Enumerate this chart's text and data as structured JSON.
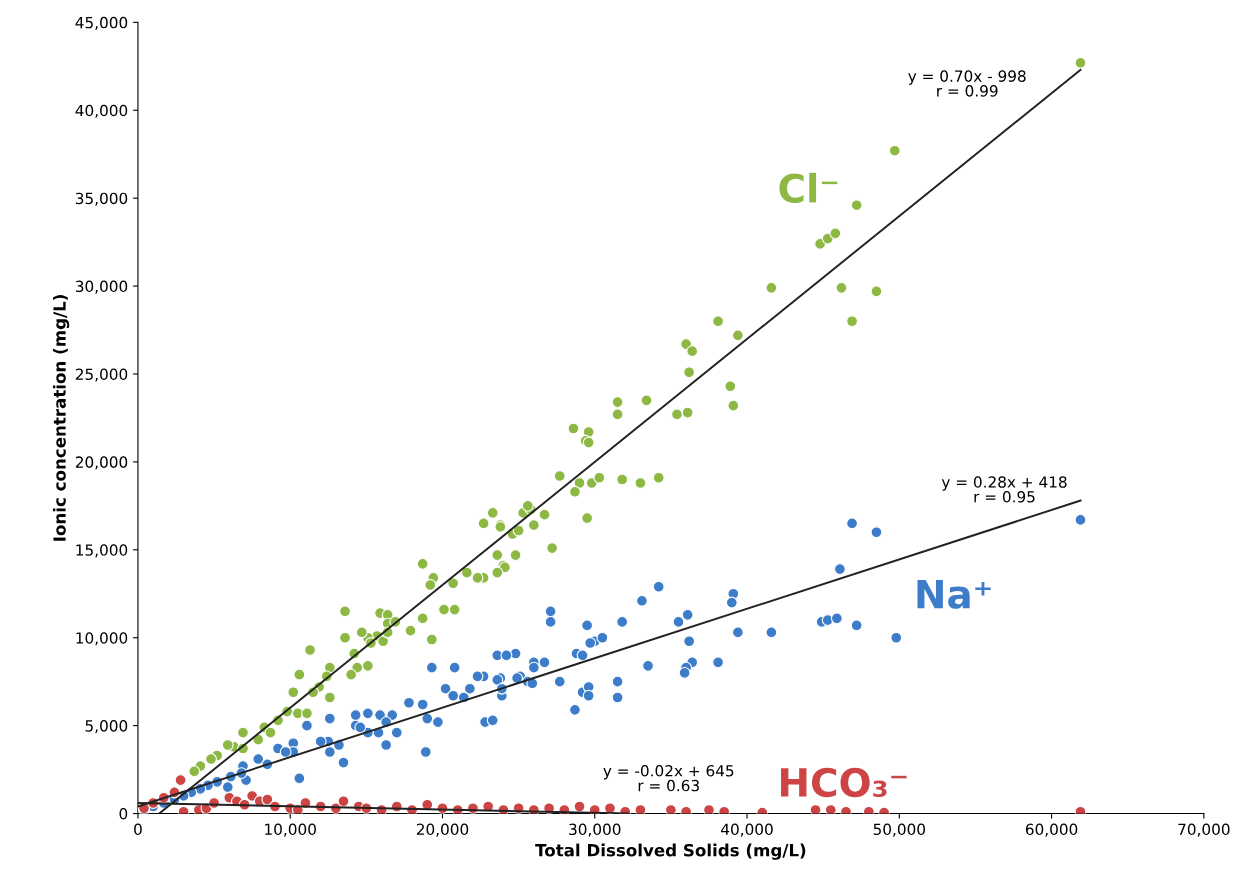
{
  "chart_data": {
    "type": "scatter",
    "xlabel": "Total Dissolved Solids (mg/L)",
    "ylabel": "Ionic concentration (mg/L)",
    "xlim": [
      0,
      70000
    ],
    "ylim": [
      0,
      45000
    ],
    "xticks": [
      0,
      {
        "value": 10000,
        "label": "10,000"
      },
      {
        "value": 20000,
        "label": "20,000"
      },
      {
        "value": 30000,
        "label": "30,000"
      },
      {
        "value": 40000,
        "label": "40,000"
      },
      {
        "value": 50000,
        "label": "50,000"
      },
      {
        "value": 60000,
        "label": "60,000"
      },
      {
        "value": 70000,
        "label": "70,000"
      }
    ],
    "yticks": [
      0,
      {
        "value": 5000,
        "label": "5,000"
      },
      {
        "value": 10000,
        "label": "10,000"
      },
      {
        "value": 15000,
        "label": "15,000"
      },
      {
        "value": 20000,
        "label": "20,000"
      },
      {
        "value": 25000,
        "label": "25,000"
      },
      {
        "value": 30000,
        "label": "30,000"
      },
      {
        "value": 35000,
        "label": "35,000"
      },
      {
        "value": 40000,
        "label": "40,000"
      },
      {
        "value": 45000,
        "label": "45,000"
      }
    ],
    "grid": false,
    "legend": false,
    "marker": "circle",
    "series": [
      {
        "name": "Cl⁻",
        "color": "#8db843",
        "x": [
          61900,
          49700,
          47200,
          44800,
          45300,
          45800,
          41600,
          46200,
          48500,
          46900,
          38100,
          39400,
          36000,
          36400,
          36200,
          38900,
          39100,
          31500,
          31500,
          33400,
          35400,
          36100,
          28600,
          29600,
          29400,
          29600,
          27700,
          29000,
          28700,
          29800,
          30300,
          31800,
          33000,
          34200,
          29500,
          25300,
          25800,
          26000,
          26700,
          27200,
          23800,
          24600,
          24800,
          24000,
          25600,
          23300,
          22700,
          23800,
          25000,
          23600,
          24100,
          23600,
          22700,
          21600,
          22300,
          18700,
          19400,
          19200,
          20700,
          20100,
          20800,
          18700,
          19300,
          17900,
          15900,
          16400,
          16400,
          16900,
          15700,
          16100,
          16400,
          15100,
          15300,
          13600,
          13600,
          14700,
          14200,
          14400,
          15100,
          14000,
          11300,
          10600,
          10200,
          12600,
          12400,
          11900,
          11500,
          12600,
          9800,
          10500,
          11100,
          9200,
          8300,
          8700,
          6900,
          7900,
          6300,
          5900,
          6900,
          5200,
          4800,
          4100,
          3700
        ],
        "values": [
          42700,
          37700,
          34600,
          32400,
          32700,
          33000,
          29900,
          29900,
          29700,
          28000,
          28000,
          27200,
          26700,
          26300,
          25100,
          24300,
          23200,
          23400,
          22700,
          23500,
          22700,
          22800,
          21900,
          21700,
          21200,
          21100,
          19200,
          18800,
          18300,
          18800,
          19100,
          19000,
          18800,
          19100,
          16800,
          17100,
          17300,
          16400,
          17000,
          15100,
          16400,
          15900,
          14700,
          14100,
          17500,
          17100,
          16500,
          16300,
          16100,
          14700,
          14000,
          13700,
          13400,
          13700,
          13400,
          14200,
          13400,
          13000,
          13100,
          11600,
          11600,
          11100,
          9900,
          10400,
          11400,
          11300,
          10800,
          10900,
          10100,
          9800,
          10300,
          10000,
          9700,
          11500,
          10000,
          10300,
          9100,
          8300,
          8400,
          7900,
          9300,
          7900,
          6900,
          8300,
          7800,
          7200,
          6900,
          6600,
          5800,
          5700,
          5700,
          5300,
          4900,
          4600,
          4600,
          4200,
          3800,
          3900,
          3700,
          3300,
          3100,
          2700,
          2400
        ]
      },
      {
        "name": "Na⁺",
        "color": "#3d7cc9",
        "x": [
          61900,
          46900,
          48500,
          46100,
          44900,
          45300,
          45900,
          47200,
          49800,
          39100,
          39000,
          39400,
          41600,
          38100,
          36100,
          35500,
          36200,
          36400,
          36000,
          35900,
          34200,
          33100,
          33500,
          31800,
          31500,
          31500,
          29500,
          30000,
          30500,
          29700,
          28800,
          29200,
          27700,
          28700,
          29200,
          29600,
          29600,
          27100,
          27100,
          26000,
          26700,
          26000,
          24800,
          25100,
          25600,
          25900,
          23800,
          23900,
          23600,
          24200,
          22700,
          22300,
          23600,
          23900,
          24900,
          22800,
          23300,
          20800,
          20200,
          20700,
          21400,
          21800,
          19300,
          19000,
          19700,
          18900,
          17800,
          18700,
          15900,
          16700,
          16300,
          17000,
          15800,
          16300,
          15100,
          14300,
          14300,
          15100,
          14600,
          13500,
          12600,
          12500,
          12600,
          13200,
          11100,
          12000,
          10200,
          10200,
          10600,
          9200,
          9700,
          7900,
          8500,
          6900,
          7100,
          6800,
          6100,
          5900,
          5200,
          4600,
          4100,
          3500,
          3000,
          2400,
          1700,
          1000,
          400
        ],
        "values": [
          16700,
          16500,
          16000,
          13900,
          10900,
          11000,
          11100,
          10700,
          10000,
          12500,
          12000,
          10300,
          10300,
          8600,
          11300,
          10900,
          9800,
          8600,
          8300,
          8000,
          12900,
          12100,
          8400,
          10900,
          7500,
          6600,
          10700,
          9800,
          10000,
          9700,
          9100,
          9000,
          7500,
          5900,
          6900,
          7200,
          6700,
          11500,
          10900,
          8600,
          8600,
          8300,
          9100,
          7800,
          7500,
          7400,
          7700,
          6700,
          9000,
          9000,
          7800,
          7800,
          7600,
          7100,
          7700,
          5200,
          5300,
          8300,
          7100,
          6700,
          6600,
          7100,
          8300,
          5400,
          5200,
          3500,
          6300,
          6200,
          5600,
          5600,
          5200,
          4600,
          4600,
          3900,
          5700,
          5600,
          5000,
          4600,
          4900,
          2900,
          5400,
          4100,
          3500,
          3900,
          5000,
          4100,
          4000,
          3500,
          2000,
          3700,
          3500,
          3100,
          2800,
          2700,
          1900,
          2300,
          2100,
          1500,
          1800,
          1600,
          1400,
          1200,
          1000,
          800,
          600,
          400,
          200
        ]
      },
      {
        "name": "HCO₃⁻",
        "color": "#cc4444",
        "x": [
          400,
          1000,
          1700,
          2400,
          2800,
          3000,
          4000,
          4500,
          5000,
          6000,
          6500,
          7000,
          7500,
          8000,
          8500,
          9000,
          10000,
          10500,
          11000,
          12000,
          13000,
          13500,
          14500,
          15000,
          16000,
          17000,
          18000,
          19000,
          20000,
          21000,
          22000,
          23000,
          24000,
          25000,
          26000,
          27000,
          28000,
          29000,
          30000,
          31000,
          32000,
          33000,
          35000,
          36000,
          37500,
          38500,
          41000,
          44500,
          45500,
          46500,
          48000,
          49000,
          61900
        ],
        "values": [
          300,
          600,
          900,
          1200,
          1900,
          100,
          200,
          300,
          600,
          900,
          700,
          500,
          1000,
          700,
          800,
          400,
          300,
          200,
          600,
          400,
          300,
          700,
          400,
          300,
          200,
          400,
          200,
          500,
          300,
          200,
          300,
          400,
          200,
          300,
          200,
          300,
          200,
          400,
          200,
          300,
          100,
          200,
          200,
          100,
          200,
          100,
          50,
          200,
          200,
          100,
          100,
          50,
          100
        ]
      },
      {
        "type": "line",
        "marker": "none",
        "color": "#222222",
        "x": [
          1400,
          61900
        ],
        "values": [
          0,
          42300
        ]
      },
      {
        "type": "line",
        "marker": "none",
        "color": "#222222",
        "x": [
          0,
          61900
        ],
        "values": [
          400,
          17800
        ]
      },
      {
        "type": "line",
        "marker": "none",
        "color": "#222222",
        "x": [
          0,
          32200
        ],
        "values": [
          600,
          0
        ]
      }
    ],
    "annotations": [
      "y = 0.70x - 998\nr = 0.99",
      "y = 0.28x + 418\nr = 0.95",
      "y = -0.02x + 645\nr = 0.63"
    ]
  }
}
